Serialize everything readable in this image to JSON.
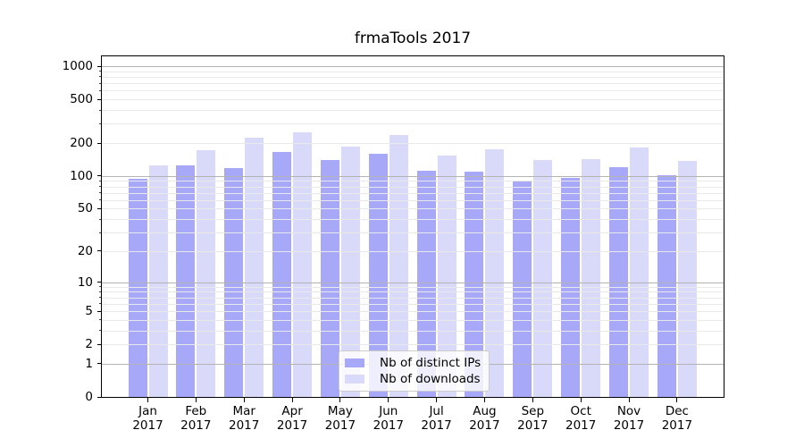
{
  "chart_data": {
    "type": "bar",
    "title": "frmaTools 2017",
    "yscale": "log1p",
    "categories": [
      "Jan",
      "Feb",
      "Mar",
      "Apr",
      "May",
      "Jun",
      "Jul",
      "Aug",
      "Sep",
      "Oct",
      "Nov",
      "Dec"
    ],
    "year_label": "2017",
    "series": [
      {
        "name": "Nb of distinct IPs",
        "color": "#a8a8f8",
        "values": [
          95,
          125,
          119,
          166,
          141,
          161,
          112,
          110,
          91,
          96,
          121,
          101
        ]
      },
      {
        "name": "Nb of downloads",
        "color": "#d9d9fa",
        "values": [
          124,
          173,
          222,
          250,
          187,
          235,
          155,
          176,
          140,
          143,
          183,
          138
        ]
      }
    ],
    "yticks_labeled": [
      0,
      1,
      2,
      5,
      10,
      20,
      50,
      100,
      200,
      500,
      1000
    ],
    "grid_major": [
      1,
      10,
      100,
      1000
    ],
    "grid_minor": [
      2,
      3,
      4,
      5,
      6,
      7,
      8,
      9,
      20,
      30,
      40,
      50,
      60,
      70,
      80,
      90,
      200,
      300,
      400,
      500,
      600,
      700,
      800,
      900
    ],
    "ylim": [
      0,
      1200
    ],
    "grid": true,
    "legend_position": "lower center",
    "colors": {
      "grid_major": "#b3b3b3",
      "grid_minor": "#e9e9e9",
      "spine": "#000000",
      "legend_border": "#cccccc"
    }
  }
}
